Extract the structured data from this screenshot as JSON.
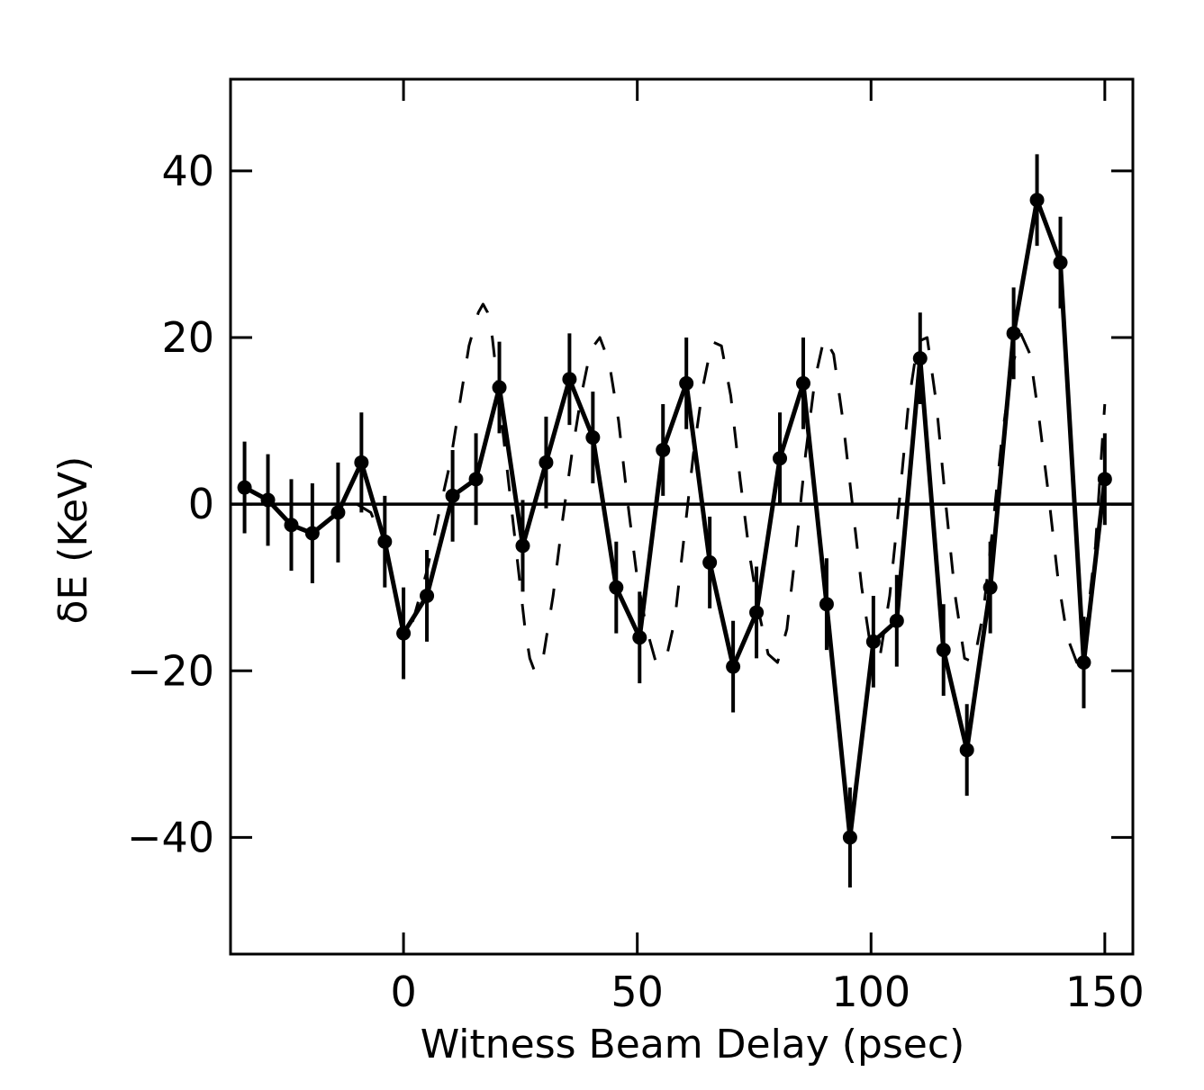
{
  "chart_data": {
    "type": "line",
    "title": "",
    "xlabel": "Witness Beam Delay (psec)",
    "ylabel": "δE (KeV)",
    "xlim": [
      -37,
      156
    ],
    "ylim": [
      -54,
      51
    ],
    "x_ticks": [
      0,
      50,
      100,
      150
    ],
    "x_tick_labels": [
      "0",
      "50",
      "100",
      "150"
    ],
    "y_ticks": [
      -40,
      -20,
      0,
      20,
      40
    ],
    "y_tick_labels": [
      "−40",
      "−20",
      "0",
      "20",
      "40"
    ],
    "zero_line": true,
    "grid": false,
    "legend": "none",
    "series": [
      {
        "style": "solid line with filled markers and error bars",
        "color": "#000000",
        "points": [
          {
            "x": -34,
            "y": 2,
            "err": 5.5
          },
          {
            "x": -29,
            "y": 0.5,
            "err": 5.5
          },
          {
            "x": -24,
            "y": -2.5,
            "err": 5.5
          },
          {
            "x": -19.5,
            "y": -3.5,
            "err": 6
          },
          {
            "x": -14,
            "y": -1,
            "err": 6
          },
          {
            "x": -9,
            "y": 5,
            "err": 6
          },
          {
            "x": -4,
            "y": -4.5,
            "err": 5.5
          },
          {
            "x": 0,
            "y": -15.5,
            "err": 5.5
          },
          {
            "x": 5,
            "y": -11,
            "err": 5.5
          },
          {
            "x": 10.5,
            "y": 1,
            "err": 5.5
          },
          {
            "x": 15.5,
            "y": 3,
            "err": 5.5
          },
          {
            "x": 20.5,
            "y": 14,
            "err": 5.5
          },
          {
            "x": 25.5,
            "y": -5,
            "err": 5.5
          },
          {
            "x": 30.5,
            "y": 5,
            "err": 5.5
          },
          {
            "x": 35.5,
            "y": 15,
            "err": 5.5
          },
          {
            "x": 40.5,
            "y": 8,
            "err": 5.5
          },
          {
            "x": 45.5,
            "y": -10,
            "err": 5.5
          },
          {
            "x": 50.5,
            "y": -16,
            "err": 5.5
          },
          {
            "x": 55.5,
            "y": 6.5,
            "err": 5.5
          },
          {
            "x": 60.5,
            "y": 14.5,
            "err": 5.5
          },
          {
            "x": 65.5,
            "y": -7,
            "err": 5.5
          },
          {
            "x": 70.5,
            "y": -19.5,
            "err": 5.5
          },
          {
            "x": 75.5,
            "y": -13,
            "err": 5.5
          },
          {
            "x": 80.5,
            "y": 5.5,
            "err": 5.5
          },
          {
            "x": 85.5,
            "y": 14.5,
            "err": 5.5
          },
          {
            "x": 90.5,
            "y": -12,
            "err": 5.5
          },
          {
            "x": 95.5,
            "y": -40,
            "err": 6
          },
          {
            "x": 100.5,
            "y": -16.5,
            "err": 5.5
          },
          {
            "x": 105.5,
            "y": -14,
            "err": 5.5
          },
          {
            "x": 110.5,
            "y": 17.5,
            "err": 5.5
          },
          {
            "x": 115.5,
            "y": -17.5,
            "err": 5.5
          },
          {
            "x": 120.5,
            "y": -29.5,
            "err": 5.5
          },
          {
            "x": 125.5,
            "y": -10,
            "err": 5.5
          },
          {
            "x": 130.5,
            "y": 20.5,
            "err": 5.5
          },
          {
            "x": 135.5,
            "y": 36.5,
            "err": 5.5
          },
          {
            "x": 140.5,
            "y": 29,
            "err": 5.5
          },
          {
            "x": 145.5,
            "y": -19,
            "err": 5.5
          },
          {
            "x": 150,
            "y": 3,
            "err": 5.5
          }
        ]
      },
      {
        "style": "dashed curve",
        "color": "#000000",
        "x": [
          -10,
          -7,
          -4,
          -1,
          2,
          5,
          8,
          10,
          12,
          14,
          16,
          17,
          18,
          19,
          20,
          21,
          22,
          23,
          24,
          25,
          26,
          27,
          28,
          29,
          30,
          32,
          34,
          36,
          38,
          40,
          42,
          44,
          46,
          48,
          50,
          52,
          54,
          56,
          58,
          60,
          62,
          64,
          66,
          68,
          70,
          72,
          74,
          76,
          78,
          80,
          82,
          84,
          86,
          88,
          90,
          92,
          94,
          96,
          98,
          100,
          102,
          104,
          106,
          108,
          110,
          112,
          114,
          116,
          118,
          120,
          122,
          124,
          126,
          128,
          130,
          132,
          134,
          136,
          138,
          140,
          142,
          144,
          146,
          148,
          150
        ],
        "y": [
          0,
          -1,
          -5,
          -13,
          -14,
          -8,
          0,
          5,
          12,
          19,
          23,
          24,
          23,
          20,
          15,
          10,
          5,
          0,
          -5,
          -10,
          -15,
          -18.5,
          -20,
          -20,
          -18,
          -11,
          -2,
          6,
          13,
          18.5,
          20,
          17,
          10,
          0,
          -9,
          -15,
          -19,
          -19,
          -14,
          -4,
          6,
          14,
          19.5,
          19,
          13,
          3,
          -6,
          -13,
          -18,
          -19,
          -15,
          -5,
          6,
          15,
          20,
          18,
          10,
          0,
          -10,
          -17.5,
          -18,
          -11,
          0,
          12,
          19.5,
          20,
          12,
          0,
          -11,
          -18.5,
          -19,
          -13,
          -3,
          8,
          16,
          20.5,
          18,
          10,
          1,
          -9,
          -16,
          -19,
          -15,
          -5,
          12
        ]
      }
    ]
  }
}
